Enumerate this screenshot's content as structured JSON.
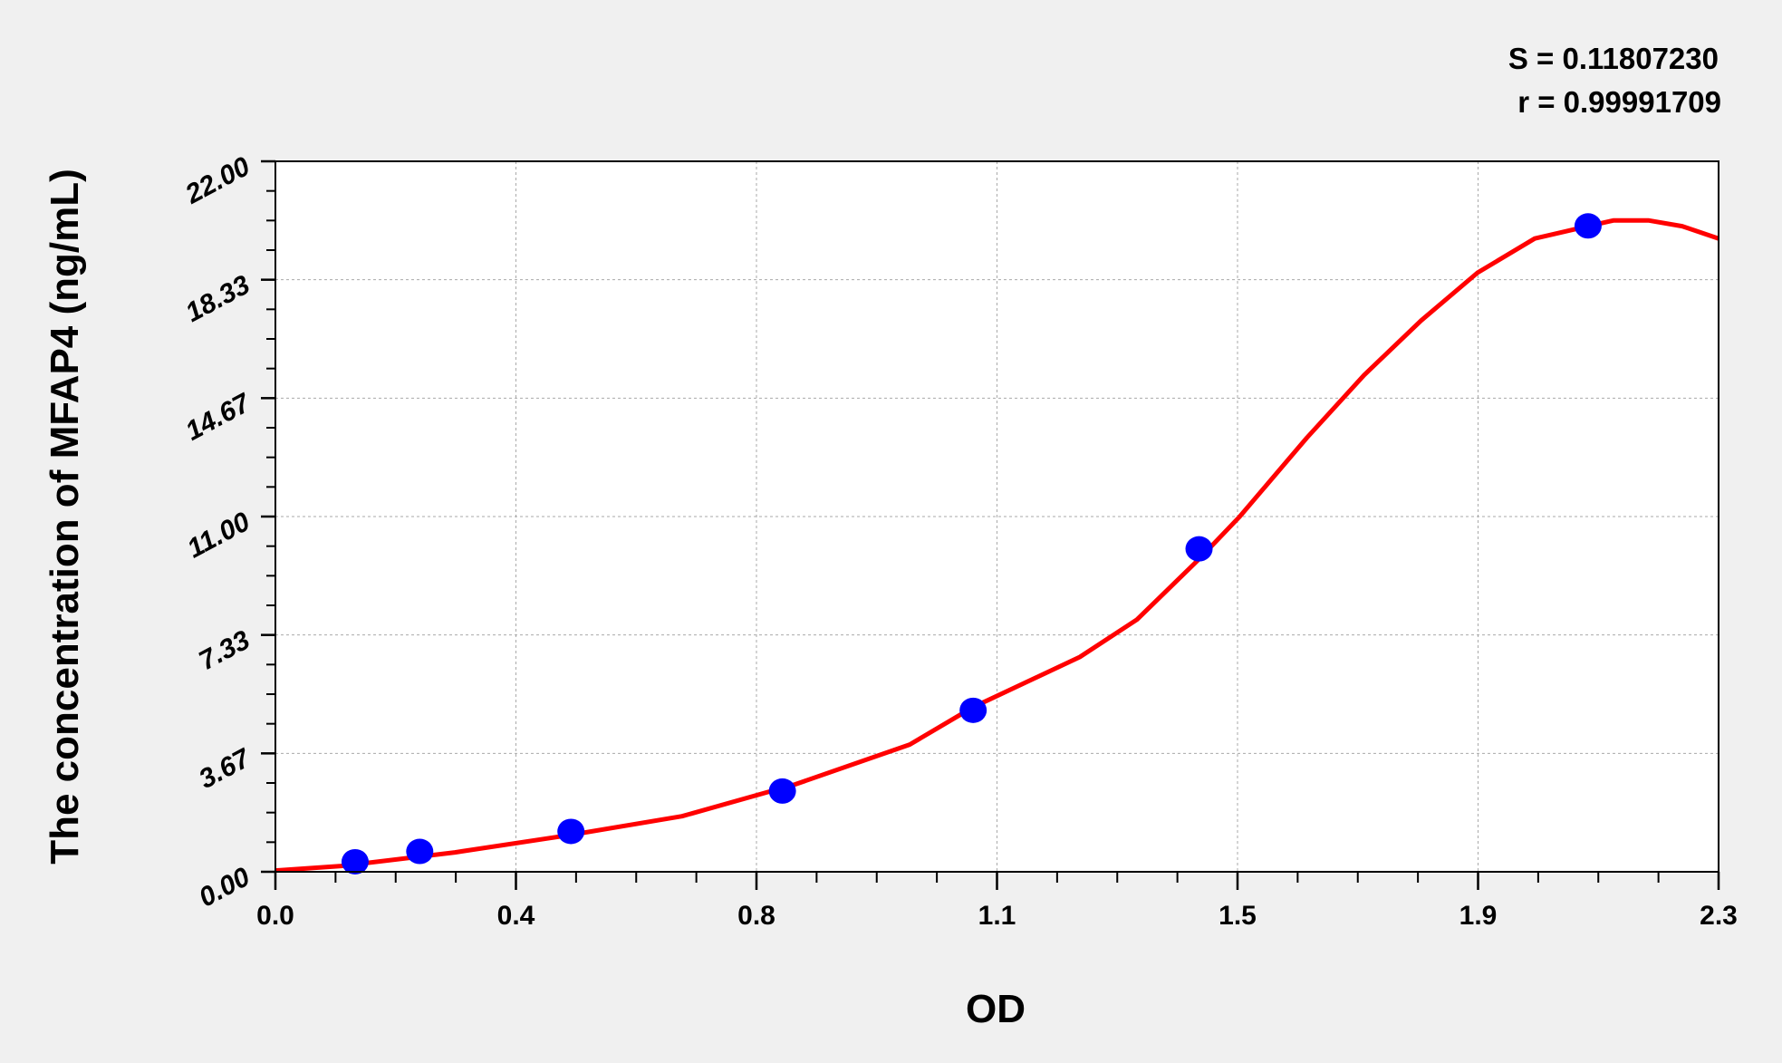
{
  "chart_data": {
    "type": "scatter",
    "title": "",
    "xlabel": "OD",
    "ylabel": "The concentration of MFAP4 (ng/mL)",
    "xlim": [
      0,
      2.3
    ],
    "ylim": [
      0,
      22
    ],
    "x_tick_labels": [
      "0.0",
      "0.4",
      "0.8",
      "1.1",
      "1.5",
      "1.9",
      "2.3"
    ],
    "y_tick_labels": [
      "0.00",
      "3.67",
      "7.33",
      "11.00",
      "14.67",
      "18.33",
      "22.00"
    ],
    "grid": true,
    "annotations": [
      "S = 0.11807230",
      "r = 0.99991709"
    ],
    "colors": {
      "points": "#0000ff",
      "curve": "#ff0000",
      "background": "#f0f0f0",
      "plot_area": "#ffffff"
    },
    "series": [
      {
        "type": "scatter",
        "x": [
          0.127,
          0.23,
          0.471,
          0.808,
          1.112,
          1.472,
          2.092
        ],
        "y": [
          0.31,
          0.63,
          1.25,
          2.5,
          5,
          10,
          20
        ]
      },
      {
        "type": "line",
        "x": [
          0,
          0.105,
          0.286,
          0.467,
          0.648,
          0.829,
          1.011,
          1.112,
          1.282,
          1.373,
          1.472,
          1.536,
          1.644,
          1.735,
          1.826,
          1.916,
          2.007,
          2.092,
          2.133,
          2.188,
          2.242,
          2.3
        ],
        "y": [
          0.04,
          0.18,
          0.6,
          1.13,
          1.72,
          2.71,
          3.94,
          5.1,
          6.65,
          7.81,
          9.68,
          10.98,
          13.44,
          15.38,
          17.07,
          18.55,
          19.61,
          19.99,
          20.17,
          20.17,
          19.99,
          19.61
        ]
      }
    ]
  }
}
